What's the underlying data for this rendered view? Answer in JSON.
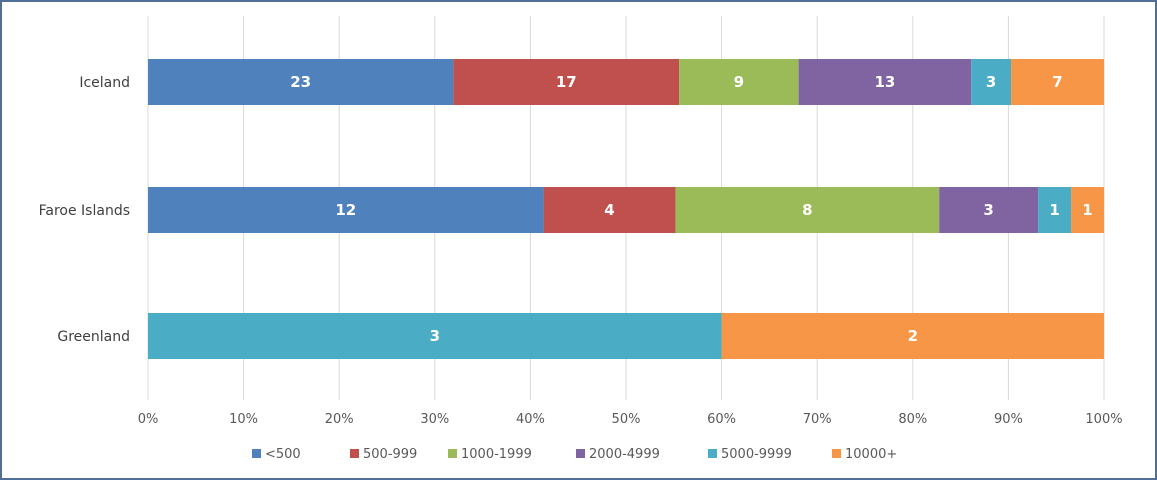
{
  "chart_data": {
    "type": "bar",
    "orientation": "horizontal",
    "stacking": "percent",
    "categories": [
      "Iceland",
      "Faroe Islands",
      "Greenland"
    ],
    "series": [
      {
        "name": "<500",
        "color": "#4f81bd",
        "values": [
          23,
          12,
          0
        ]
      },
      {
        "name": "500-999",
        "color": "#c0504d",
        "values": [
          17,
          4,
          0
        ]
      },
      {
        "name": "1000-1999",
        "color": "#9bbb59",
        "values": [
          9,
          8,
          0
        ]
      },
      {
        "name": "2000-4999",
        "color": "#8064a2",
        "values": [
          13,
          3,
          0
        ]
      },
      {
        "name": "5000-9999",
        "color": "#4bacc6",
        "values": [
          3,
          1,
          3
        ]
      },
      {
        "name": "10000+",
        "color": "#f79646",
        "values": [
          7,
          1,
          2
        ]
      }
    ],
    "xticks": [
      "0%",
      "10%",
      "20%",
      "30%",
      "40%",
      "50%",
      "60%",
      "70%",
      "80%",
      "90%",
      "100%"
    ],
    "xlim": [
      0,
      100
    ],
    "grid": "vertical",
    "legend": "bottom"
  }
}
